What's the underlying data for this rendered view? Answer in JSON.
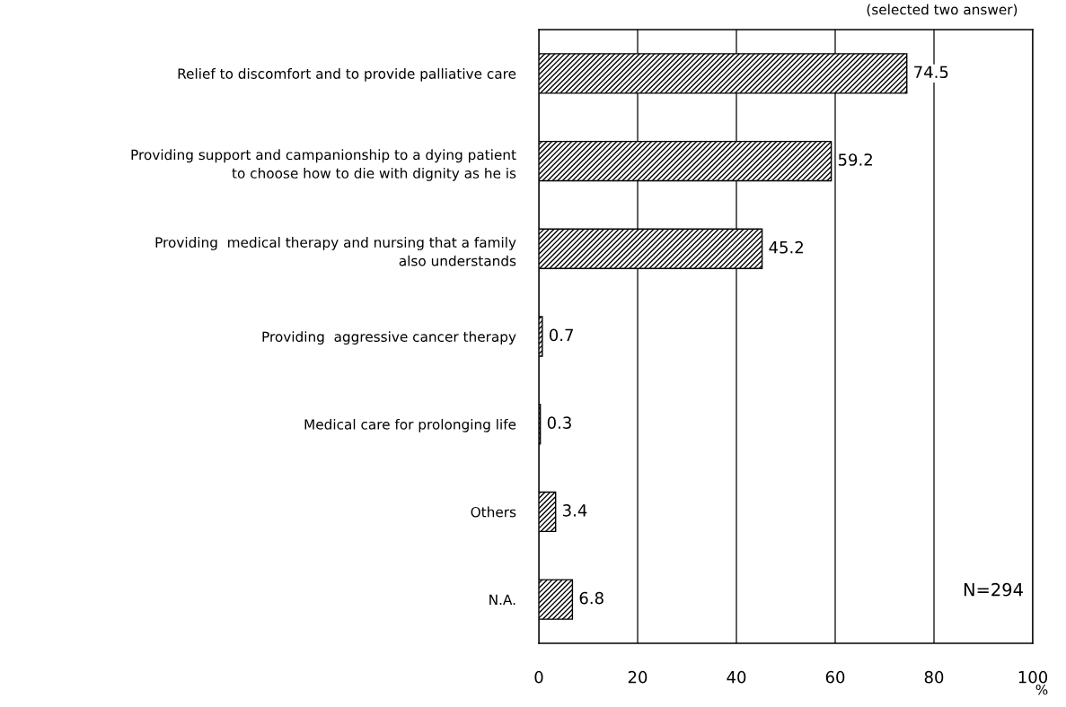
{
  "chart_data": {
    "type": "bar",
    "orientation": "horizontal",
    "categories": [
      "Relief to discomfort and to provide palliative care",
      "Providing support and campanionship to a dying patient\nto choose how to die with dignity as he is",
      "Providing  medical therapy and nursing that a family\nalso understands",
      "Providing  aggressive cancer therapy",
      "Medical care for prolonging life",
      "Others",
      "N.A."
    ],
    "values": [
      74.5,
      59.2,
      45.2,
      0.7,
      0.3,
      3.4,
      6.8
    ],
    "color": "#000000",
    "xlim": [
      0,
      100
    ],
    "xticks": [
      0,
      20,
      40,
      60,
      80,
      100
    ],
    "xlabel": "%",
    "grid": "x",
    "data_labels": true,
    "legend": false,
    "annotations": [
      "(selected two answer)",
      "N=294"
    ]
  }
}
